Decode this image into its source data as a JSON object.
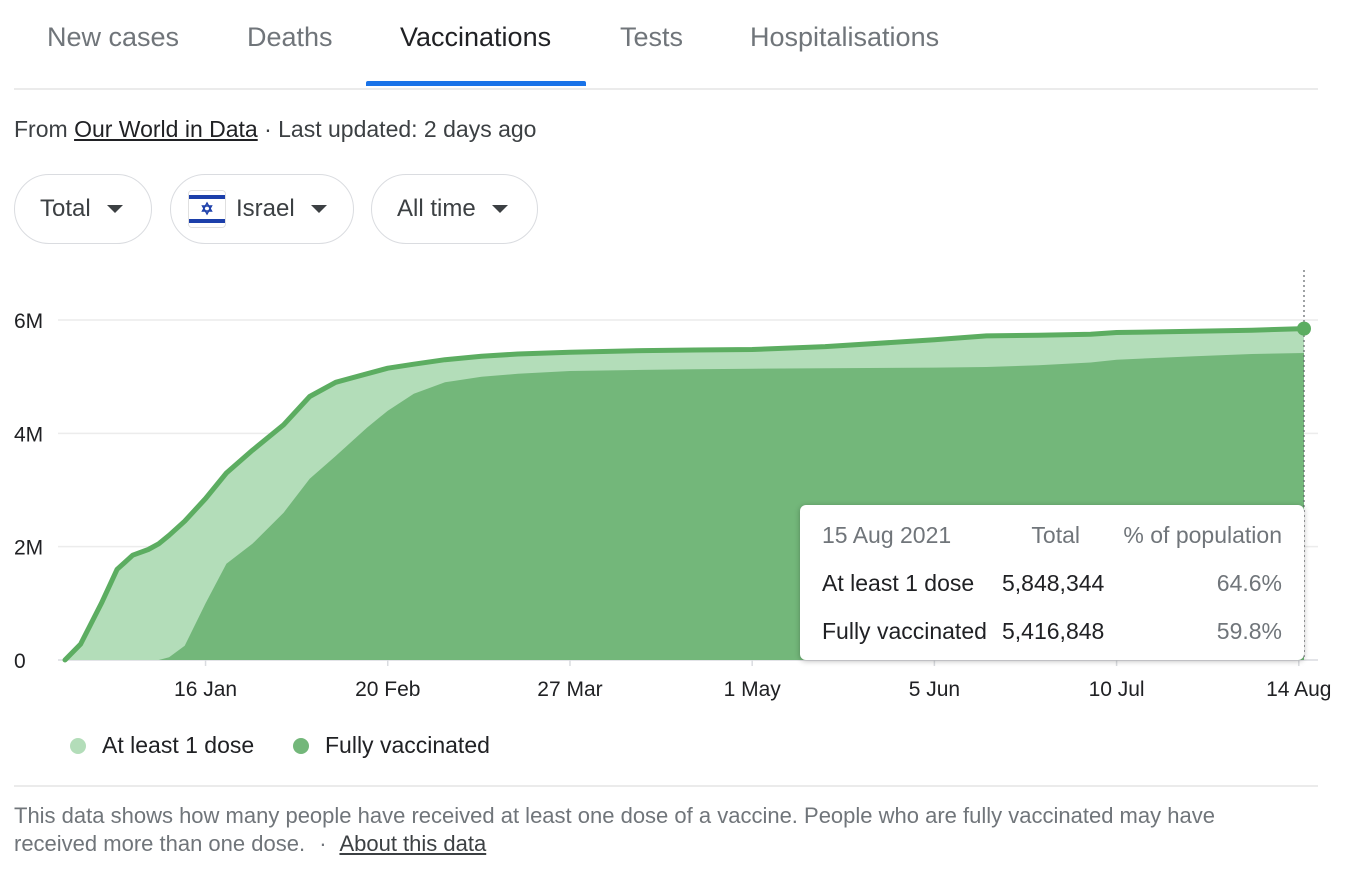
{
  "tabs": [
    {
      "label": "New cases"
    },
    {
      "label": "Deaths"
    },
    {
      "label": "Vaccinations"
    },
    {
      "label": "Tests"
    },
    {
      "label": "Hospitalisations"
    }
  ],
  "active_tab": "Vaccinations",
  "source": {
    "prefix": "From",
    "link": "Our World in Data",
    "updated": "· Last updated: 2 days ago"
  },
  "filters": {
    "metric": "Total",
    "country": "Israel",
    "range": "All time"
  },
  "colors": {
    "first_dose": "#b3ddb9",
    "fully": "#73b77a",
    "line": "#5cad61",
    "accent": "#1a73e8"
  },
  "chart_data": {
    "type": "area",
    "x_dates": [
      "2020-12-20",
      "2020-12-23",
      "2020-12-27",
      "2020-12-30",
      "2021-01-02",
      "2021-01-05",
      "2021-01-07",
      "2021-01-09",
      "2021-01-12",
      "2021-01-16",
      "2021-01-20",
      "2021-01-25",
      "2021-01-31",
      "2021-02-05",
      "2021-02-10",
      "2021-02-16",
      "2021-02-20",
      "2021-02-25",
      "2021-03-03",
      "2021-03-10",
      "2021-03-17",
      "2021-03-27",
      "2021-04-10",
      "2021-04-20",
      "2021-05-01",
      "2021-05-15",
      "2021-06-05",
      "2021-06-15",
      "2021-06-25",
      "2021-07-05",
      "2021-07-10",
      "2021-07-25",
      "2021-08-05",
      "2021-08-15"
    ],
    "series": [
      {
        "name": "At least 1 dose",
        "color": "#b3ddb9",
        "values": [
          0,
          0.28,
          1.0,
          1.6,
          1.85,
          1.95,
          2.05,
          2.2,
          2.45,
          2.85,
          3.3,
          3.7,
          4.15,
          4.65,
          4.9,
          5.05,
          5.15,
          5.22,
          5.3,
          5.36,
          5.4,
          5.43,
          5.46,
          5.47,
          5.48,
          5.53,
          5.65,
          5.72,
          5.73,
          5.75,
          5.78,
          5.8,
          5.82,
          5.848
        ]
      },
      {
        "name": "Fully vaccinated",
        "color": "#73b77a",
        "values": [
          0,
          0,
          0,
          0,
          0,
          0,
          0,
          0.05,
          0.25,
          1.0,
          1.7,
          2.05,
          2.6,
          3.2,
          3.6,
          4.1,
          4.4,
          4.7,
          4.9,
          5.0,
          5.05,
          5.1,
          5.12,
          5.13,
          5.14,
          5.15,
          5.16,
          5.17,
          5.2,
          5.25,
          5.3,
          5.36,
          5.4,
          5.417
        ]
      }
    ],
    "x_ticks": [
      "16 Jan",
      "20 Feb",
      "27 Mar",
      "1 May",
      "5 Jun",
      "10 Jul",
      "14 Aug"
    ],
    "y_ticks": [
      "0",
      "2M",
      "4M",
      "6M"
    ],
    "ylim": [
      0,
      6000000
    ],
    "legend": [
      "At least 1 dose",
      "Fully vaccinated"
    ],
    "legend_position": "bottom-left",
    "grid": true,
    "tooltip": {
      "date": "15 Aug 2021",
      "col_total": "Total",
      "col_pct": "% of population",
      "rows": [
        {
          "label": "At least 1 dose",
          "total": "5,848,344",
          "pct": "64.6%"
        },
        {
          "label": "Fully vaccinated",
          "total": "5,416,848",
          "pct": "59.8%"
        }
      ]
    }
  },
  "footer": {
    "text": "This data shows how many people have received at least one dose of a vaccine. People who are fully vaccinated may have received more than one dose.",
    "separator": "·",
    "link": "About this data"
  }
}
